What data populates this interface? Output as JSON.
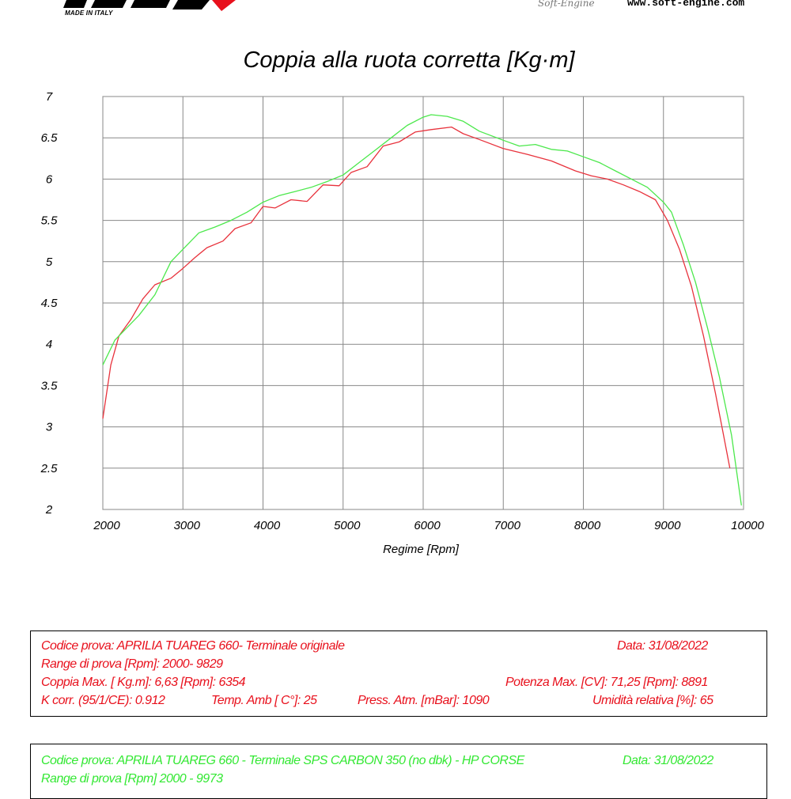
{
  "header": {
    "made_in": "MADE IN ITALY",
    "soft_engine_logo": "Soft-Engine",
    "url": "www.soft-engine.com"
  },
  "chart_data": {
    "type": "line",
    "title": "Coppia alla ruota corretta [Kg·m]",
    "xlabel": "Regime [Rpm]",
    "ylabel": "",
    "xlim": [
      2000,
      10000
    ],
    "ylim": [
      2,
      7
    ],
    "xticks": [
      "2000",
      "3000",
      "4000",
      "5000",
      "6000",
      "7000",
      "8000",
      "9000",
      "10000"
    ],
    "yticks": [
      "2",
      "2.5",
      "3",
      "3.5",
      "4",
      "4.5",
      "5",
      "5.5",
      "6",
      "6.5",
      "7"
    ],
    "grid": true,
    "series": [
      {
        "color": "#e8323c",
        "x": [
          2000,
          2100,
          2200,
          2350,
          2500,
          2650,
          2850,
          3000,
          3150,
          3300,
          3500,
          3650,
          3850,
          4000,
          4150,
          4350,
          4550,
          4750,
          4950,
          5100,
          5300,
          5500,
          5700,
          5900,
          6100,
          6354,
          6500,
          6700,
          7000,
          7300,
          7600,
          7900,
          8100,
          8300,
          8500,
          8700,
          8900,
          9050,
          9200,
          9350,
          9500,
          9650,
          9750,
          9829
        ],
        "y": [
          3.1,
          3.75,
          4.1,
          4.3,
          4.55,
          4.72,
          4.8,
          4.92,
          5.05,
          5.17,
          5.25,
          5.4,
          5.47,
          5.67,
          5.65,
          5.75,
          5.73,
          5.93,
          5.92,
          6.08,
          6.15,
          6.4,
          6.45,
          6.57,
          6.6,
          6.63,
          6.55,
          6.48,
          6.37,
          6.3,
          6.22,
          6.1,
          6.04,
          6.0,
          5.93,
          5.85,
          5.75,
          5.5,
          5.15,
          4.7,
          4.1,
          3.4,
          2.9,
          2.5
        ]
      },
      {
        "color": "#4ce84c",
        "x": [
          2000,
          2150,
          2300,
          2450,
          2650,
          2850,
          3000,
          3200,
          3400,
          3600,
          3800,
          4000,
          4200,
          4400,
          4600,
          4800,
          5000,
          5200,
          5400,
          5600,
          5800,
          6000,
          6100,
          6300,
          6500,
          6700,
          7000,
          7200,
          7400,
          7600,
          7800,
          8000,
          8200,
          8400,
          8600,
          8800,
          9000,
          9100,
          9250,
          9400,
          9550,
          9700,
          9850,
          9973
        ],
        "y": [
          3.75,
          4.05,
          4.2,
          4.35,
          4.6,
          5.0,
          5.15,
          5.35,
          5.42,
          5.5,
          5.6,
          5.72,
          5.8,
          5.85,
          5.9,
          5.97,
          6.05,
          6.2,
          6.35,
          6.5,
          6.65,
          6.75,
          6.78,
          6.76,
          6.7,
          6.58,
          6.47,
          6.4,
          6.42,
          6.36,
          6.34,
          6.27,
          6.2,
          6.1,
          6.0,
          5.9,
          5.72,
          5.6,
          5.2,
          4.75,
          4.2,
          3.6,
          2.9,
          2.05
        ]
      }
    ]
  },
  "test1": {
    "codice": "Codice prova: APRILIA TUAREG 660- Terminale originale",
    "data": "Data: 31/08/2022",
    "range": "Range di prova  [Rpm]: 2000- 9829",
    "coppia": "Coppia Max. [ Kg.m]:  6,63 [Rpm]: 6354",
    "potenza": "Potenza Max. [CV]:  71,25  [Rpm]: 8891",
    "kcorr": "K corr.  (95/1/CE): 0.912",
    "temp": "Temp. Amb  [ C°]: 25",
    "press": "Press. Atm.  [mBar]: 1090",
    "umidita": "Umidità relativa [%]: 65"
  },
  "test2": {
    "codice": "Codice prova: APRILIA TUAREG 660 - Terminale SPS CARBON 350  (no dbk) - HP CORSE",
    "data": "Data: 31/08/2022",
    "range": "Range di prova [Rpm] 2000 - 9973"
  }
}
